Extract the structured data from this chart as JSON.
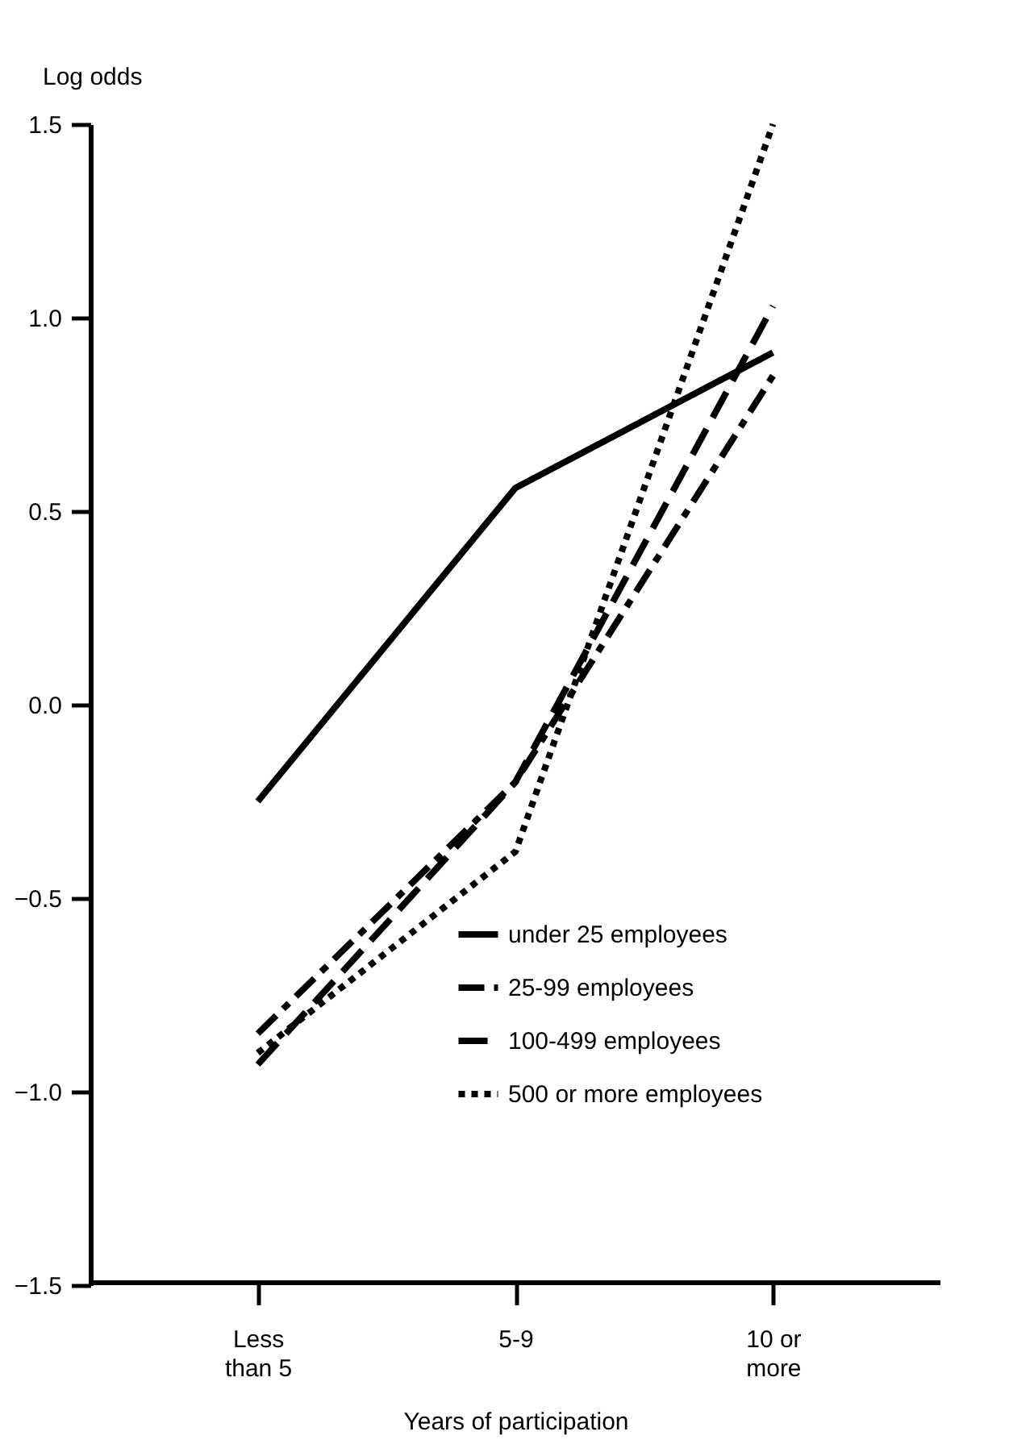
{
  "chart_data": {
    "type": "line",
    "xlabel": "Years of participation",
    "ylabel": "Log odds",
    "categories": [
      "Less\nthan 5",
      "5-9",
      "10 or\nmore"
    ],
    "series": [
      {
        "name": "under 25 employees",
        "color": "#000000",
        "line_style": "solid",
        "values": [
          -0.25,
          0.56,
          0.91
        ]
      },
      {
        "name": "25-99 employees",
        "color": "#000000",
        "line_style": "dashdot",
        "values": [
          -0.85,
          -0.2,
          0.85
        ]
      },
      {
        "name": "100-499 employees",
        "color": "#000000",
        "line_style": "dashed",
        "values": [
          -0.93,
          -0.2,
          1.03
        ]
      },
      {
        "name": "500 or more employees",
        "color": "#000000",
        "line_style": "dotted",
        "values": [
          -0.9,
          -0.38,
          1.5
        ]
      }
    ],
    "ylim": [
      -1.5,
      1.5
    ],
    "yticks": [
      -1.5,
      {
        "value": -1,
        "label": "−1.0"
      },
      -0.5,
      {
        "value": 0,
        "label": "0.0"
      },
      0.5,
      {
        "value": 1,
        "label": "1.0"
      },
      1.5
    ],
    "grid": false,
    "legend": "bottom right",
    "marker": "none"
  }
}
